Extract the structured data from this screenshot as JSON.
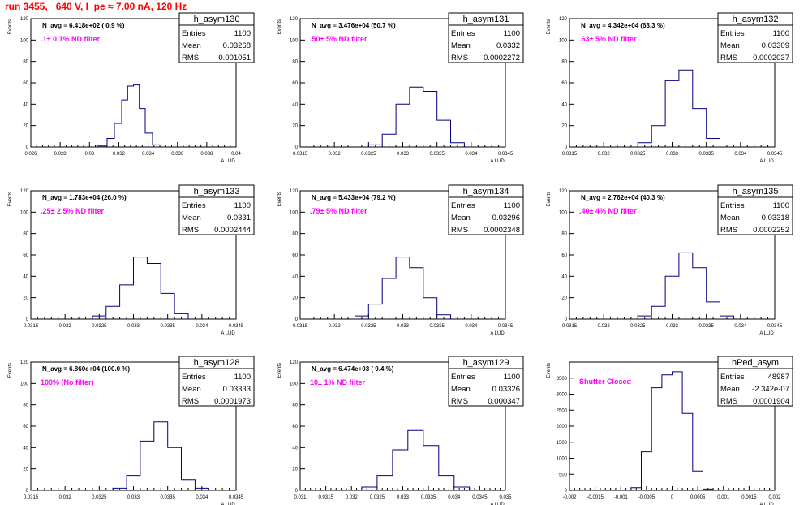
{
  "page": {
    "title": "run 3455,   640 V, I_pe ≈ 7.00 nA, 120 Hz"
  },
  "chart_data": [
    {
      "type": "histogram",
      "name": "h_asym130",
      "annotation": "N_avg = 6.418e+02 ( 0.9 %)",
      "filter_label": ".1± 0.1% ND filter",
      "stats": {
        "entries": "1100",
        "mean": "0.03268",
        "rms": "0.001051"
      },
      "xlabel": "A_LUD",
      "ylabel": "Events",
      "xlim": [
        0.026,
        0.04
      ],
      "ylim": [
        0,
        120
      ],
      "x_ticks": [
        "0.026",
        "0.028",
        "0.03",
        "0.032",
        "0.034",
        "0.036",
        "0.038",
        "0.04"
      ],
      "y_ticks": [
        "0",
        "20",
        "40",
        "60",
        "80",
        "100",
        "120"
      ],
      "bin_edges": [
        0.0305,
        0.0312,
        0.0317,
        0.0322,
        0.0326,
        0.033,
        0.0334,
        0.0338,
        0.0343,
        0.0348
      ],
      "values": [
        1,
        8,
        22,
        44,
        57,
        58,
        36,
        13,
        2
      ]
    },
    {
      "type": "histogram",
      "name": "h_asym131",
      "annotation": "N_avg = 3.476e+04 (50.7 %)",
      "filter_label": ".50± 5% ND filter",
      "stats": {
        "entries": "1100",
        "mean": "0.0332",
        "rms": "0.0002272"
      },
      "xlabel": "A_LUD",
      "ylabel": "Events",
      "xlim": [
        0.0315,
        0.0345
      ],
      "ylim": [
        0,
        120
      ],
      "x_ticks": [
        "0.0315",
        "0.032",
        "0.0325",
        "0.033",
        "0.0335",
        "0.034",
        "0.0345"
      ],
      "y_ticks": [
        "0",
        "20",
        "40",
        "60",
        "80",
        "100",
        "120"
      ],
      "bin_edges": [
        0.0325,
        0.0327,
        0.0329,
        0.0331,
        0.0333,
        0.0335,
        0.0337,
        0.0339
      ],
      "values": [
        2,
        12,
        40,
        56,
        52,
        25,
        4
      ]
    },
    {
      "type": "histogram",
      "name": "h_asym132",
      "annotation": "N_avg = 4.342e+04 (63.3 %)",
      "filter_label": ".63± 5% ND filter",
      "stats": {
        "entries": "1100",
        "mean": "0.03309",
        "rms": "0.0002037"
      },
      "xlabel": "A_LUD",
      "ylabel": "Events",
      "xlim": [
        0.0315,
        0.0345
      ],
      "ylim": [
        0,
        120
      ],
      "x_ticks": [
        "0.0315",
        "0.032",
        "0.0325",
        "0.033",
        "0.0335",
        "0.034",
        "0.0345"
      ],
      "y_ticks": [
        "0",
        "20",
        "40",
        "60",
        "80",
        "100",
        "120"
      ],
      "bin_edges": [
        0.0325,
        0.0327,
        0.0329,
        0.0331,
        0.0333,
        0.0335,
        0.0337
      ],
      "values": [
        4,
        20,
        62,
        72,
        36,
        8
      ]
    },
    {
      "type": "histogram",
      "name": "h_asym133",
      "annotation": "N_avg = 1.783e+04 (26.0 %)",
      "filter_label": ".25± 2.5% ND filter",
      "stats": {
        "entries": "1100",
        "mean": "0.0331",
        "rms": "0.0002444"
      },
      "xlabel": "A_LUD",
      "ylabel": "Events",
      "xlim": [
        0.0315,
        0.0345
      ],
      "ylim": [
        0,
        120
      ],
      "x_ticks": [
        "0.0315",
        "0.032",
        "0.0325",
        "0.033",
        "0.0335",
        "0.034",
        "0.0345"
      ],
      "y_ticks": [
        "0",
        "20",
        "40",
        "60",
        "80",
        "100",
        "120"
      ],
      "bin_edges": [
        0.0324,
        0.0326,
        0.0328,
        0.033,
        0.0332,
        0.0334,
        0.0336,
        0.0338
      ],
      "values": [
        3,
        12,
        32,
        58,
        52,
        24,
        5
      ]
    },
    {
      "type": "histogram",
      "name": "h_asym134",
      "annotation": "N_avg = 5.433e+04 (79.2 %)",
      "filter_label": ".79± 5% ND filter",
      "stats": {
        "entries": "1100",
        "mean": "0.03296",
        "rms": "0.0002348"
      },
      "xlabel": "A_LUD",
      "ylabel": "Events",
      "xlim": [
        0.0315,
        0.0345
      ],
      "ylim": [
        0,
        120
      ],
      "x_ticks": [
        "0.0315",
        "0.032",
        "0.0325",
        "0.033",
        "0.0335",
        "0.034",
        "0.0345"
      ],
      "y_ticks": [
        "0",
        "20",
        "40",
        "60",
        "80",
        "100",
        "120"
      ],
      "bin_edges": [
        0.0323,
        0.0325,
        0.0327,
        0.0329,
        0.0331,
        0.0333,
        0.0335,
        0.0337
      ],
      "values": [
        3,
        14,
        38,
        58,
        48,
        20,
        4
      ]
    },
    {
      "type": "histogram",
      "name": "h_asym135",
      "annotation": "N_avg = 2.762e+04 (40.3 %)",
      "filter_label": ".40± 4% ND filter",
      "stats": {
        "entries": "1100",
        "mean": "0.03318",
        "rms": "0.0002252"
      },
      "xlabel": "A_LUD",
      "ylabel": "Events",
      "xlim": [
        0.0315,
        0.0345
      ],
      "ylim": [
        0,
        120
      ],
      "x_ticks": [
        "0.0315",
        "0.032",
        "0.0325",
        "0.033",
        "0.0335",
        "0.034",
        "0.0345"
      ],
      "y_ticks": [
        "0",
        "20",
        "40",
        "60",
        "80",
        "100",
        "120"
      ],
      "bin_edges": [
        0.0325,
        0.0327,
        0.0329,
        0.0331,
        0.0333,
        0.0335,
        0.0337,
        0.0339
      ],
      "values": [
        3,
        12,
        40,
        62,
        48,
        16,
        3
      ]
    },
    {
      "type": "histogram",
      "name": "h_asym128",
      "annotation": "N_avg = 6.860e+04 (100.0 %)",
      "filter_label": "100% (No filter)",
      "stats": {
        "entries": "1100",
        "mean": "0.03333",
        "rms": "0.0001973"
      },
      "xlabel": "A_LUD",
      "ylabel": "Events",
      "xlim": [
        0.0315,
        0.0345
      ],
      "ylim": [
        0,
        120
      ],
      "x_ticks": [
        "0.0315",
        "0.032",
        "0.0325",
        "0.033",
        "0.0335",
        "0.034",
        "0.0345"
      ],
      "y_ticks": [
        "0",
        "20",
        "40",
        "60",
        "80",
        "100",
        "120"
      ],
      "bin_edges": [
        0.0327,
        0.0329,
        0.0331,
        0.0333,
        0.0335,
        0.0337,
        0.0339,
        0.0341
      ],
      "values": [
        2,
        14,
        46,
        64,
        40,
        10,
        2
      ]
    },
    {
      "type": "histogram",
      "name": "h_asym129",
      "annotation": "N_avg = 6.474e+03 ( 9.4 %)",
      "filter_label": "10± 1% ND filter",
      "stats": {
        "entries": "1100",
        "mean": "0.03326",
        "rms": "0.000347"
      },
      "xlabel": "A_LUD",
      "ylabel": "Events",
      "xlim": [
        0.031,
        0.035
      ],
      "ylim": [
        0,
        120
      ],
      "x_ticks": [
        "0.031",
        "0.0315",
        "0.032",
        "0.0325",
        "0.033",
        "0.0335",
        "0.034",
        "0.0345",
        "0.035"
      ],
      "y_ticks": [
        "0",
        "20",
        "40",
        "60",
        "80",
        "100",
        "120"
      ],
      "bin_edges": [
        0.0322,
        0.0325,
        0.0328,
        0.0331,
        0.0334,
        0.0337,
        0.034,
        0.0343
      ],
      "values": [
        3,
        14,
        38,
        56,
        42,
        14,
        3
      ]
    },
    {
      "type": "histogram",
      "name": "hPed_asym",
      "annotation": "",
      "filter_label": "Shutter Closed",
      "stats": {
        "entries": "48987",
        "mean": "-2.342e-07",
        "rms": "0.0001904"
      },
      "xlabel": "A_LUD",
      "ylabel": "Events",
      "xlim": [
        -0.002,
        0.002
      ],
      "ylim": [
        0,
        4000
      ],
      "x_ticks": [
        "-0.002",
        "-0.0015",
        "-0.001",
        "-0.0005",
        "0",
        "0.0005",
        "0.001",
        "0.0015",
        "0.002"
      ],
      "y_ticks": [
        "0",
        "500",
        "1000",
        "1500",
        "2000",
        "2500",
        "3000",
        "3500"
      ],
      "bin_edges": [
        -0.0008,
        -0.0006,
        -0.0004,
        -0.0002,
        0,
        0.0002,
        0.0004,
        0.0006,
        0.0008
      ],
      "values": [
        80,
        1200,
        3200,
        3600,
        3700,
        2400,
        600,
        40
      ]
    }
  ],
  "colors": {
    "title": "#ff0000",
    "annotation_filter": "#ff00ff",
    "histogram_line": "#000080",
    "axes": "#000000"
  }
}
